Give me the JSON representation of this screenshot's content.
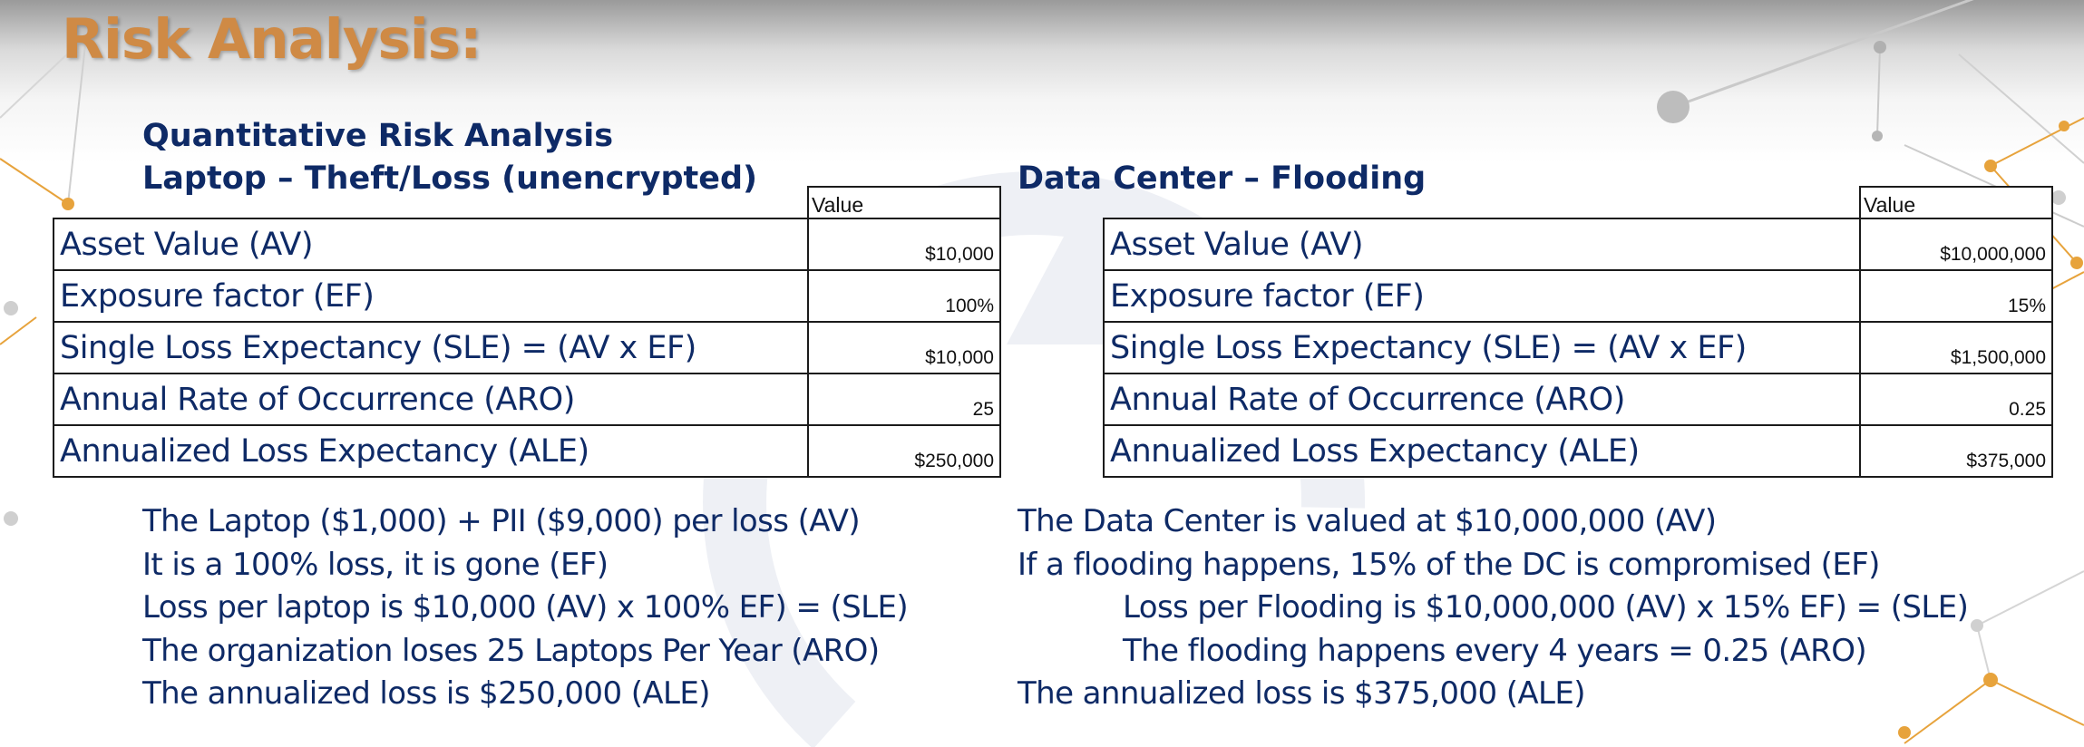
{
  "slide": {
    "title": "Risk Analysis:"
  },
  "left": {
    "heading_line1": "Quantitative Risk Analysis",
    "heading_line2": "Laptop – Theft/Loss (unencrypted)",
    "table": {
      "header": "Value",
      "rows": [
        {
          "label": "Asset Value (AV)",
          "value": "$10,000"
        },
        {
          "label": "Exposure factor (EF)",
          "value": "100%"
        },
        {
          "label": "Single Loss Expectancy (SLE) = (AV x EF)",
          "value": "$10,000"
        },
        {
          "label": "Annual Rate of Occurrence (ARO)",
          "value": "25"
        },
        {
          "label": "Annualized Loss Expectancy (ALE)",
          "value": "$250,000"
        }
      ]
    },
    "notes": [
      "The Laptop ($1,000) + PII ($9,000) per loss (AV)",
      "It is a 100% loss, it is gone (EF)",
      "Loss per laptop is $10,000 (AV) x 100% EF) = (SLE)",
      "The organization loses 25 Laptops Per Year (ARO)",
      "The annualized loss is $250,000 (ALE)"
    ]
  },
  "right": {
    "heading": "Data Center – Flooding",
    "table": {
      "header": "Value",
      "rows": [
        {
          "label": "Asset Value (AV)",
          "value": "$10,000,000"
        },
        {
          "label": "Exposure factor (EF)",
          "value": "15%"
        },
        {
          "label": "Single Loss Expectancy (SLE) = (AV x EF)",
          "value": "$1,500,000"
        },
        {
          "label": "Annual Rate of Occurrence (ARO)",
          "value": "0.25"
        },
        {
          "label": "Annualized Loss Expectancy (ALE)",
          "value": "$375,000"
        }
      ]
    },
    "notes": [
      "The Data Center is valued at $10,000,000 (AV)",
      "If a flooding happens, 15% of the DC is compromised (EF)",
      "Loss per Flooding is $10,000,000 (AV) x 15% EF) = (SLE)",
      "The flooding happens every 4 years = 0.25 (ARO)",
      "The annualized loss is $375,000 (ALE)"
    ]
  },
  "colors": {
    "title": "#cf8a45",
    "text": "#0e2a66",
    "accent_orange": "#e7a33c",
    "decor_gray": "#a9a9a9"
  }
}
